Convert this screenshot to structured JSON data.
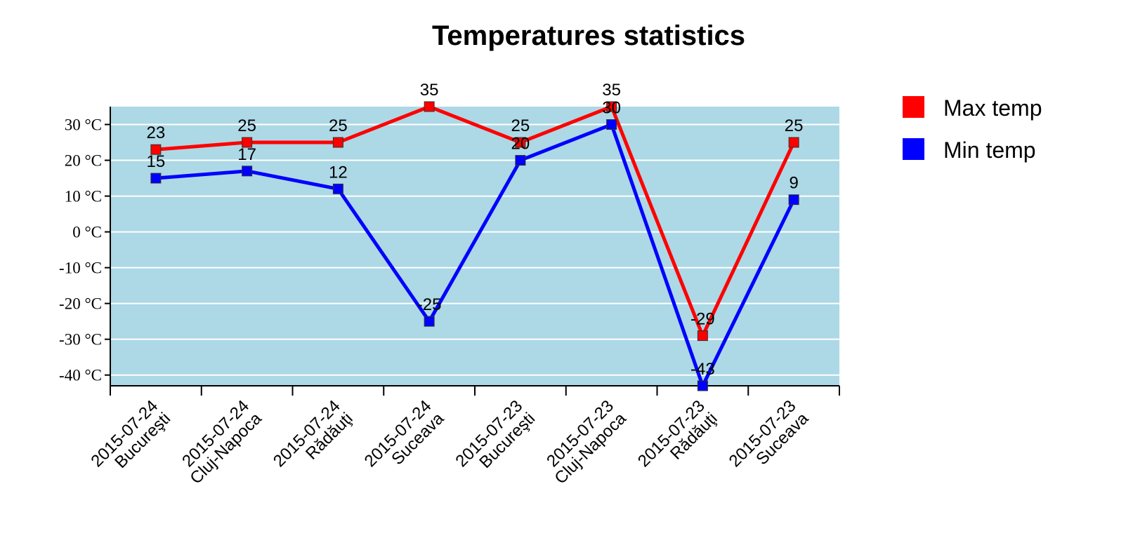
{
  "chart_data": {
    "type": "line",
    "title": "Temperatures statistics",
    "xlabel": "",
    "ylabel": "",
    "y_unit": "°C",
    "ylim": [
      -43,
      35
    ],
    "yticks": [
      30,
      20,
      10,
      0,
      -10,
      -20,
      -30,
      -40
    ],
    "ytick_labels": [
      "30 °C",
      "20 °C",
      "10 °C",
      "0 °C",
      "-10 °C",
      "-20 °C",
      "-30 °C",
      "-40 °C"
    ],
    "grid": true,
    "plot_background": "#add8e6",
    "legend_position": "right",
    "categories": [
      [
        "2015-07-24",
        "Bucureşti"
      ],
      [
        "2015-07-24",
        "Cluj-Napoca"
      ],
      [
        "2015-07-24",
        "Rădăuţi"
      ],
      [
        "2015-07-24",
        "Suceava"
      ],
      [
        "2015-07-23",
        "Bucureşti"
      ],
      [
        "2015-07-23",
        "Cluj-Napoca"
      ],
      [
        "2015-07-23",
        "Rădăuţi"
      ],
      [
        "2015-07-23",
        "Suceava"
      ]
    ],
    "series": [
      {
        "name": "Max temp",
        "color": "#ff0000",
        "values": [
          23,
          25,
          25,
          35,
          25,
          35,
          -29,
          25
        ]
      },
      {
        "name": "Min temp",
        "color": "#0000ff",
        "values": [
          15,
          17,
          12,
          -25,
          20,
          30,
          -43,
          9
        ]
      }
    ]
  }
}
